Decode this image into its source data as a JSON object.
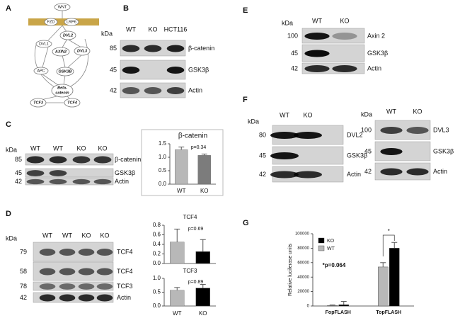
{
  "panel_labels": [
    "A",
    "B",
    "C",
    "D",
    "E",
    "F",
    "G"
  ],
  "pathway": {
    "nodes": [
      "WNT",
      "FZD",
      "LRP6",
      "DVL1",
      "DVL2",
      "AXIN2",
      "DVL3",
      "APC",
      "GSK3B",
      [
        "Beta-",
        "catenin"
      ],
      "TCF3",
      "TCF4"
    ]
  },
  "blots": {
    "B": {
      "kda": "kDa",
      "lanes": [
        "WT",
        "KO",
        "HCT116"
      ],
      "rows": [
        {
          "kda": "85",
          "label": "β-catenin"
        },
        {
          "kda": "45",
          "label": "GSK3β"
        },
        {
          "kda": "42",
          "label": "Actin"
        }
      ]
    },
    "C": {
      "kda": "kDa",
      "lanes": [
        "WT",
        "WT",
        "KO",
        "KO"
      ],
      "rows": [
        {
          "kda": "85",
          "label": "β-catenin"
        },
        {
          "kda": "45",
          "label": "GSK3β"
        },
        {
          "kda": "42",
          "label": "Actin"
        }
      ]
    },
    "D": {
      "kda": "kDa",
      "lanes": [
        "WT",
        "WT",
        "KO",
        "KO"
      ],
      "rows": [
        {
          "kda": "79",
          "label": "TCF4"
        },
        {
          "kda": "58",
          "label": "TCF4"
        },
        {
          "kda": "78",
          "label": "TCF3"
        },
        {
          "kda": "42",
          "label": "Actin"
        }
      ]
    },
    "E": {
      "kda": "kDa",
      "lanes": [
        "WT",
        "KO"
      ],
      "rows": [
        {
          "kda": "100",
          "label": "Axin 2"
        },
        {
          "kda": "45",
          "label": "GSK3β"
        },
        {
          "kda": "42",
          "label": "Actin"
        }
      ]
    },
    "F_left": {
      "kda": "kDa",
      "lanes": [
        "WT",
        "KO"
      ],
      "rows": [
        {
          "kda": "80",
          "label": "DVL2"
        },
        {
          "kda": "45",
          "label": "GSK3β"
        },
        {
          "kda": "42",
          "label": "Actin"
        }
      ]
    },
    "F_right": {
      "kda": "kDa",
      "lanes": [
        "WT",
        "KO"
      ],
      "rows": [
        {
          "kda": "100",
          "label": "DVL3"
        },
        {
          "kda": "45",
          "label": "GSK3β"
        },
        {
          "kda": "42",
          "label": "Actin"
        }
      ]
    }
  },
  "chart_data": [
    {
      "type": "bar",
      "title": "β-catenin",
      "categories": [
        "WT",
        "KO"
      ],
      "values": [
        1.28,
        1.07
      ],
      "errors": [
        0.1,
        0.05
      ],
      "colors": [
        "#b8b8b8",
        "#7c7c7c"
      ],
      "ylim": [
        0,
        1.5
      ],
      "yticks": [
        {
          "value": 0,
          "label": "0.0"
        },
        {
          "value": 0.5,
          "label": "0.5"
        },
        {
          "value": 1,
          "label": "1.0"
        },
        {
          "value": 1.5,
          "label": "1.5"
        }
      ],
      "annotations": [
        "p=0.34"
      ]
    },
    {
      "type": "bar",
      "title": "TCF4",
      "categories": [
        null,
        null
      ],
      "values": [
        0.45,
        0.25
      ],
      "errors": [
        0.27,
        0.25
      ],
      "colors": [
        "#b8b8b8",
        "#000000"
      ],
      "ylim": [
        0,
        0.8
      ],
      "yticks": [
        {
          "value": 0,
          "label": "0.0"
        },
        {
          "value": 0.2,
          "label": "0.2"
        },
        {
          "value": 0.4,
          "label": "0.4"
        },
        {
          "value": 0.6,
          "label": "0.6"
        },
        {
          "value": 0.8,
          "label": "0.8"
        }
      ],
      "annotations": [
        "p=0.69"
      ]
    },
    {
      "type": "bar",
      "title": "TCF3",
      "categories": [
        "WT",
        "KO"
      ],
      "values": [
        0.57,
        0.65
      ],
      "errors": [
        0.1,
        0.13
      ],
      "colors": [
        "#b8b8b8",
        "#000000"
      ],
      "ylim": [
        0,
        1
      ],
      "yticks": [
        {
          "value": 0,
          "label": "0.0"
        },
        {
          "value": 0.5,
          "label": "0.5"
        },
        {
          "value": 1,
          "label": "1.0"
        }
      ],
      "annotations": [
        "p=0.89"
      ]
    },
    {
      "type": "grouped-bar",
      "y_label": "Relative luciferase units",
      "categories": [
        "FopFLASH",
        "TopFLASH"
      ],
      "series": [
        {
          "name": "KO",
          "color": "#000000",
          "values": [
            1800,
            80000
          ],
          "errors": [
            4500,
            8000
          ]
        },
        {
          "name": "WT",
          "color": "#b8b8b8",
          "values": [
            800,
            54000
          ],
          "errors": [
            700,
            6000
          ]
        }
      ],
      "ylim": [
        0,
        100000
      ],
      "yticks": [
        0,
        20000,
        40000,
        60000,
        80000,
        100000
      ],
      "legend": "upper left",
      "annotations": [
        "*p=0.064",
        "*"
      ]
    }
  ]
}
